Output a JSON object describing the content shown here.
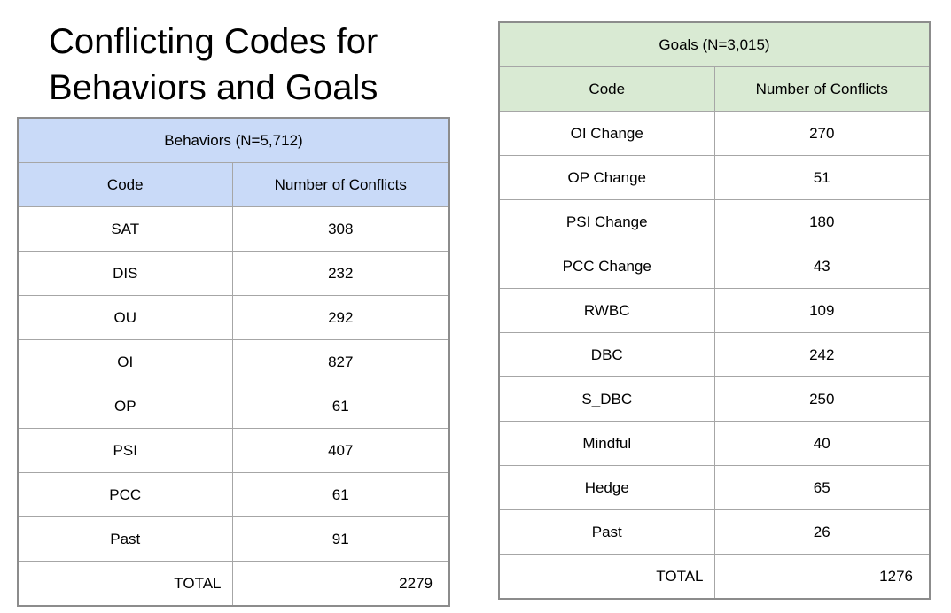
{
  "title": {
    "line1": "Conflicting Codes for",
    "line2": "Behaviors and Goals"
  },
  "chart_data": [
    {
      "type": "table",
      "title": "Behaviors (N=5,712)",
      "columns": [
        "Code",
        "Number of Conflicts"
      ],
      "rows": [
        [
          "SAT",
          308
        ],
        [
          "DIS",
          232
        ],
        [
          "OU",
          292
        ],
        [
          "OI",
          827
        ],
        [
          "OP",
          61
        ],
        [
          "PSI",
          407
        ],
        [
          "PCC",
          61
        ],
        [
          "Past",
          91
        ]
      ],
      "total_label": "TOTAL",
      "total_value": 2279,
      "header_color": "#c9daf8"
    },
    {
      "type": "table",
      "title": "Goals (N=3,015)",
      "columns": [
        "Code",
        "Number of Conflicts"
      ],
      "rows": [
        [
          "OI Change",
          270
        ],
        [
          "OP Change",
          51
        ],
        [
          "PSI Change",
          180
        ],
        [
          "PCC Change",
          43
        ],
        [
          "RWBC",
          109
        ],
        [
          "DBC",
          242
        ],
        [
          "S_DBC",
          250
        ],
        [
          "Mindful",
          40
        ],
        [
          "Hedge",
          65
        ],
        [
          "Past",
          26
        ]
      ],
      "total_label": "TOTAL",
      "total_value": 1276,
      "header_color": "#d9ead3"
    }
  ]
}
